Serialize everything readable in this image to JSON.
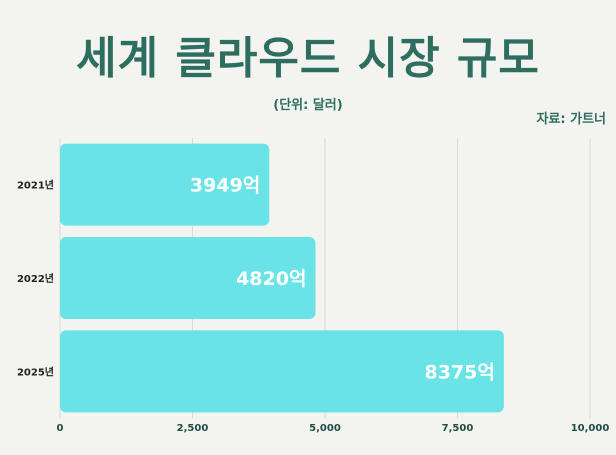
{
  "header": {
    "title": "세계 클라우드 시장 규모",
    "subtitle": "(단위: 달러)",
    "source": "자료: 가트너"
  },
  "colors": {
    "bar": "#69e3e5",
    "title": "#2e6e60",
    "background": "#f3f3f0"
  },
  "chart_data": {
    "type": "bar",
    "orientation": "horizontal",
    "title": "세계 클라우드 시장 규모",
    "subtitle": "(단위: 달러)",
    "source": "자료: 가트너",
    "categories": [
      "2021년",
      "2022년",
      "2025년"
    ],
    "values": [
      3949,
      4820,
      8375
    ],
    "value_labels": [
      "3949억",
      "4820억",
      "8375억"
    ],
    "xlim": [
      0,
      10000
    ],
    "xticks": [
      0,
      2500,
      5000,
      7500,
      10000
    ],
    "xtick_labels": [
      "0",
      "2,500",
      "5,000",
      "7,500",
      "10,000"
    ],
    "grid": "vertical"
  }
}
